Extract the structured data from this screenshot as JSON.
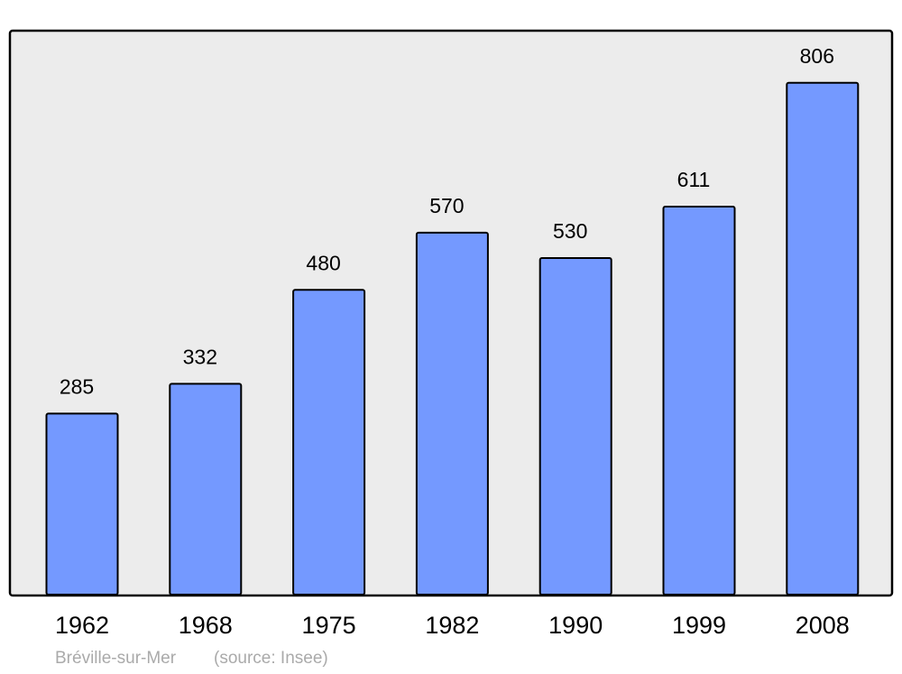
{
  "chart_data": {
    "type": "bar",
    "categories": [
      "1962",
      "1968",
      "1975",
      "1982",
      "1990",
      "1999",
      "2008"
    ],
    "values": [
      285,
      332,
      480,
      570,
      530,
      611,
      806
    ],
    "color": "#7499ff",
    "footnote": "Bréville-sur-Mer",
    "source": "(source: Insee)"
  }
}
